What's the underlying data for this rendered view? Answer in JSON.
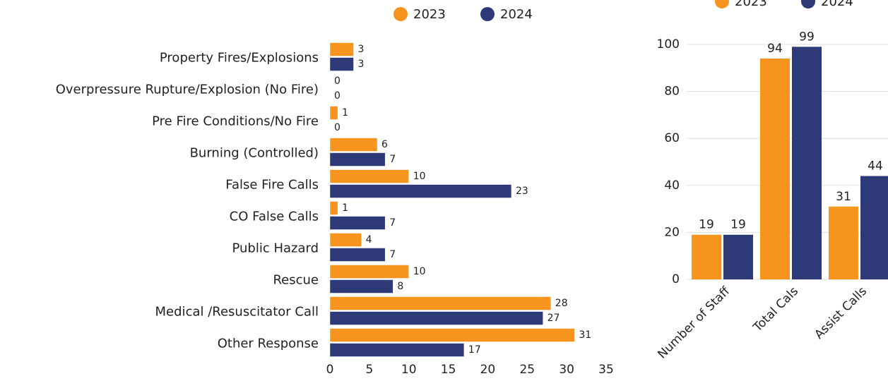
{
  "chart_data": [
    {
      "type": "bar",
      "orientation": "horizontal",
      "categories": [
        "Property Fires/Explosions",
        "Overpressure Rupture/Explosion (No Fire)",
        "Pre Fire Conditions/No Fire",
        "Burning (Controlled)",
        "False Fire Calls",
        "CO False Calls",
        "Public Hazard",
        "Rescue",
        "Medical /Resuscitator Call",
        "Other Response"
      ],
      "series": [
        {
          "name": "2023",
          "color": "#f7941d",
          "values": [
            3,
            0,
            1,
            6,
            10,
            1,
            4,
            10,
            28,
            31
          ]
        },
        {
          "name": "2024",
          "color": "#2e3a78",
          "values": [
            3,
            0,
            0,
            7,
            23,
            7,
            7,
            8,
            27,
            17
          ]
        }
      ],
      "xlim": [
        0,
        35
      ],
      "xticks": [
        0,
        5,
        10,
        15,
        20,
        25,
        30,
        35
      ],
      "grid": false,
      "legend": "top"
    },
    {
      "type": "bar",
      "orientation": "vertical",
      "categories": [
        "Number of Staff",
        "Total Cals",
        "Assist Calls"
      ],
      "series": [
        {
          "name": "2023",
          "color": "#f7941d",
          "values": [
            19,
            94,
            31
          ]
        },
        {
          "name": "2024",
          "color": "#2e3a78",
          "values": [
            19,
            99,
            44
          ]
        }
      ],
      "ylim": [
        0,
        100
      ],
      "yticks": [
        0,
        20,
        40,
        60,
        80,
        100
      ],
      "grid": true,
      "legend": "top"
    }
  ]
}
